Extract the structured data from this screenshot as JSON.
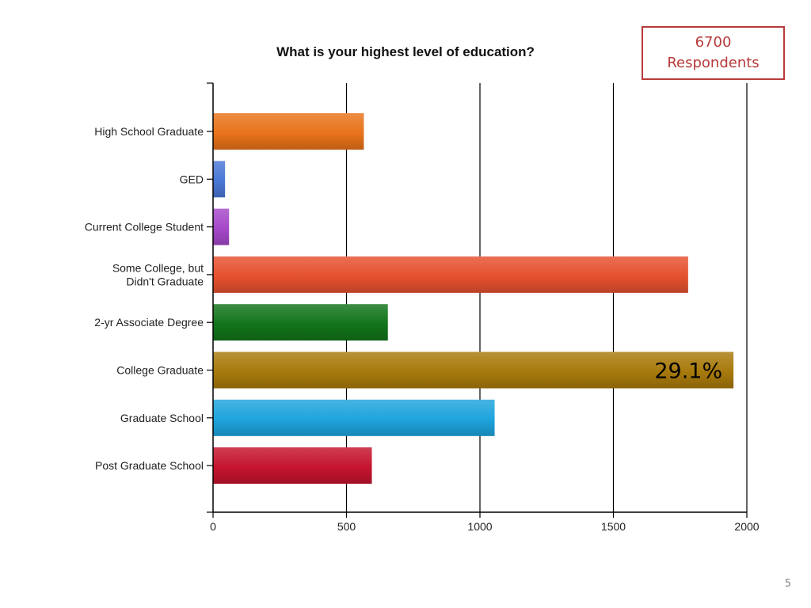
{
  "slide": {
    "respondents_count": "6700",
    "respondents_label": "Respondents",
    "page_number": "5"
  },
  "chart_data": {
    "type": "bar",
    "orientation": "horizontal",
    "title": "What is your highest level of education?",
    "xlabel": "",
    "ylabel": "",
    "xlim": [
      0,
      2000
    ],
    "x_ticks": [
      0,
      500,
      1000,
      1500,
      2000
    ],
    "grid": "vertical lines at major ticks",
    "legend": "none",
    "categories": [
      [
        "High School Graduate"
      ],
      [
        "GED"
      ],
      [
        "Current College Student"
      ],
      [
        "Some College, but",
        "Didn't Graduate"
      ],
      [
        "2-yr Associate Degree"
      ],
      [
        "College Graduate"
      ],
      [
        "Graduate School"
      ],
      [
        "Post Graduate School"
      ]
    ],
    "values": [
      565,
      45,
      60,
      1780,
      655,
      1950,
      1055,
      595
    ],
    "colors": [
      "#e8731a",
      "#4a78d6",
      "#a548c8",
      "#e5502f",
      "#12741a",
      "#a87a0c",
      "#1ea4dd",
      "#c5142e"
    ],
    "annotations": [
      {
        "category_index": 5,
        "text": "29.1%"
      }
    ]
  }
}
